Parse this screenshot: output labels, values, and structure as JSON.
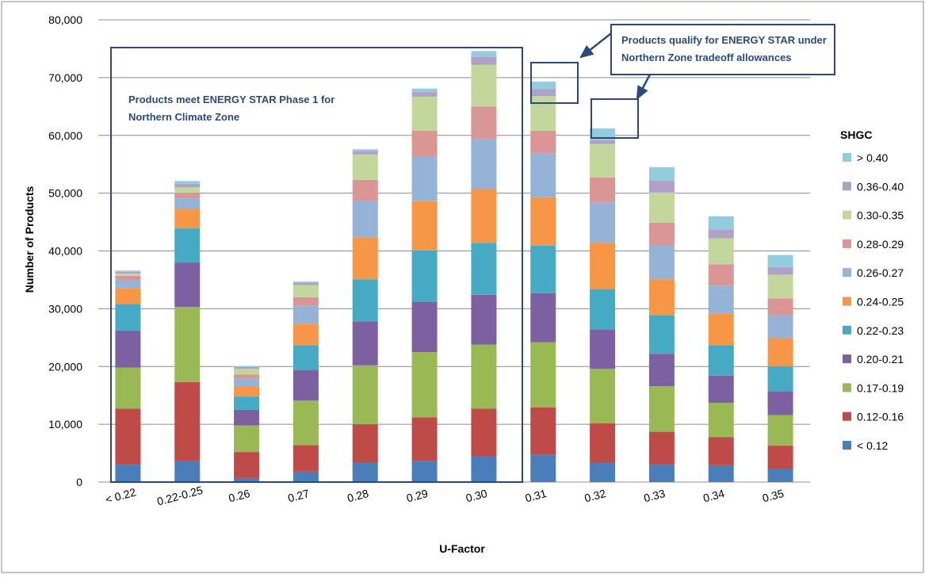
{
  "chart_data": {
    "type": "bar",
    "stacked": true,
    "xlabel": "U-Factor",
    "ylabel": "Number of Products",
    "ylim": [
      0,
      80000
    ],
    "yticks": [
      "0",
      "10,000",
      "20,000",
      "30,000",
      "40,000",
      "50,000",
      "60,000",
      "70,000",
      "80,000"
    ],
    "grid": true,
    "legend_title": "SHGC",
    "legend_position": "right",
    "categories": [
      "< 0.22",
      "0.22-0.25",
      "0.26",
      "0.27",
      "0.28",
      "0.29",
      "0.30",
      "0.31",
      "0.32",
      "0.33",
      "0.34",
      "0.35"
    ],
    "series": [
      {
        "name": "< 0.12",
        "color": "#4a7ebb",
        "values": [
          3000,
          3700,
          700,
          1800,
          3300,
          3600,
          4400,
          4700,
          3300,
          3000,
          2900,
          2200
        ]
      },
      {
        "name": "0.12-0.16",
        "color": "#be4b48",
        "values": [
          9700,
          13600,
          4500,
          4600,
          6700,
          7600,
          8300,
          8200,
          6900,
          5700,
          4900,
          4100
        ]
      },
      {
        "name": "0.17-0.19",
        "color": "#98b954",
        "values": [
          7100,
          13000,
          4600,
          7700,
          10200,
          11300,
          11100,
          11300,
          9400,
          7900,
          5900,
          5300
        ]
      },
      {
        "name": "0.20-0.21",
        "color": "#7d60a0",
        "values": [
          6400,
          7700,
          2700,
          5300,
          7600,
          8700,
          8600,
          8500,
          6800,
          5600,
          4700,
          4100
        ]
      },
      {
        "name": "0.22-0.23",
        "color": "#46aac5",
        "values": [
          4600,
          5900,
          2300,
          4300,
          7300,
          8900,
          9000,
          8200,
          7000,
          6700,
          5300,
          4300
        ]
      },
      {
        "name": "0.24-0.25",
        "color": "#f79646",
        "values": [
          2700,
          3300,
          1800,
          3700,
          7200,
          8500,
          9300,
          8400,
          8000,
          6200,
          5400,
          4900
        ]
      },
      {
        "name": "0.26-0.27",
        "color": "#95b3d7",
        "values": [
          1500,
          1900,
          1300,
          3100,
          6300,
          7800,
          8700,
          7600,
          7000,
          5800,
          4900,
          4000
        ]
      },
      {
        "name": "0.28-0.29",
        "color": "#d99694",
        "values": [
          700,
          1000,
          700,
          1500,
          3700,
          4400,
          5600,
          3900,
          4300,
          4000,
          3700,
          2900
        ]
      },
      {
        "name": "0.30-0.35",
        "color": "#c3d69b",
        "values": [
          400,
          900,
          1000,
          2100,
          4400,
          5900,
          7200,
          6000,
          5800,
          5200,
          4500,
          4100
        ]
      },
      {
        "name": "0.36-0.40",
        "color": "#b2a1c7",
        "values": [
          300,
          600,
          300,
          400,
          600,
          800,
          1400,
          1200,
          700,
          2100,
          1500,
          1300
        ]
      },
      {
        "name": "> 0.40",
        "color": "#93cddd",
        "values": [
          200,
          500,
          200,
          200,
          300,
          600,
          1000,
          1300,
          2000,
          2300,
          2300,
          2100
        ]
      }
    ],
    "annotations": {
      "phase1": "Products meet ENERGY STAR  Phase 1 for Northern Climate Zone",
      "tradeoff": "Products qualify for ENERGY STAR under Northern Zone tradeoff allowances"
    }
  }
}
